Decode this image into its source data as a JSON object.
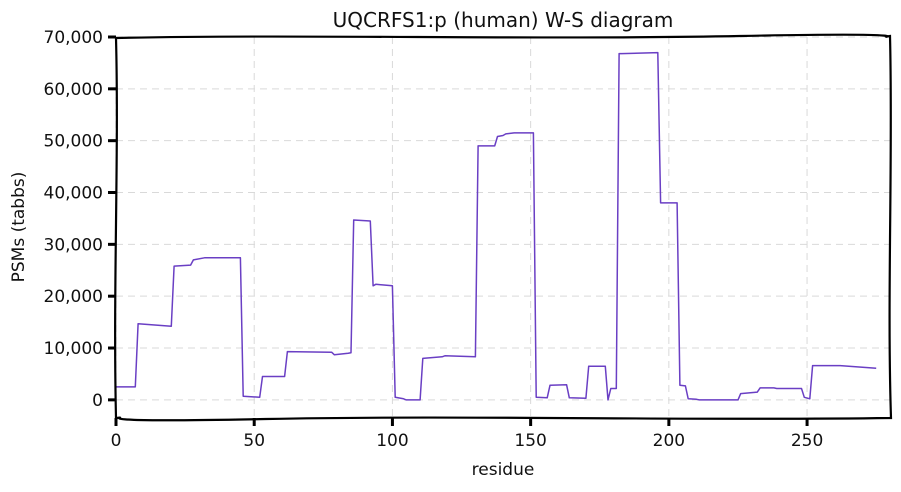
{
  "chart_data": {
    "type": "line",
    "title": "UQCRFS1:p (human) W-S diagram",
    "xlabel": "residue",
    "ylabel": "PSMs (tabbs)",
    "xlim": [
      0,
      280
    ],
    "ylim": [
      -3500,
      70000
    ],
    "xticks": [
      0,
      50,
      100,
      150,
      200,
      250
    ],
    "yticks": [
      0,
      10000,
      20000,
      30000,
      40000,
      50000,
      60000,
      70000
    ],
    "ytick_labels": [
      "0",
      "10,000",
      "20,000",
      "30,000",
      "40,000",
      "50,000",
      "60,000",
      "70,000"
    ],
    "grid": true,
    "line_color": "#6a3fc4",
    "series": [
      {
        "x": [
          0,
          7,
          8,
          20,
          21,
          27,
          28,
          32,
          45,
          46,
          52,
          53,
          61,
          62,
          78,
          79,
          84,
          85,
          86,
          92,
          93,
          94,
          100,
          101,
          104,
          105,
          110,
          111,
          118,
          119,
          130,
          131,
          137,
          138,
          140,
          141,
          144,
          145,
          151,
          152,
          156,
          157,
          163,
          164,
          170,
          171,
          177,
          178,
          179,
          181,
          182,
          183,
          196,
          197,
          203,
          204,
          206,
          207,
          210,
          211,
          215,
          225,
          226,
          232,
          233,
          238,
          239,
          248,
          249,
          251,
          252,
          262,
          275
        ],
        "y": [
          2500,
          2500,
          14700,
          14200,
          25800,
          26000,
          27000,
          27400,
          27400,
          700,
          500,
          4500,
          4500,
          9300,
          9200,
          8700,
          9000,
          9100,
          34700,
          34500,
          22000,
          22300,
          22000,
          500,
          200,
          0,
          0,
          8000,
          8300,
          8500,
          8300,
          49000,
          49000,
          50800,
          51000,
          51300,
          51500,
          51500,
          51500,
          500,
          400,
          2800,
          2900,
          400,
          300,
          6500,
          6500,
          0,
          2200,
          2200,
          66800,
          66800,
          67000,
          38000,
          38000,
          2800,
          2700,
          200,
          100,
          0,
          0,
          0,
          1200,
          1500,
          2300,
          2300,
          2200,
          2200,
          500,
          200,
          6600,
          6600,
          6100
        ]
      }
    ]
  }
}
